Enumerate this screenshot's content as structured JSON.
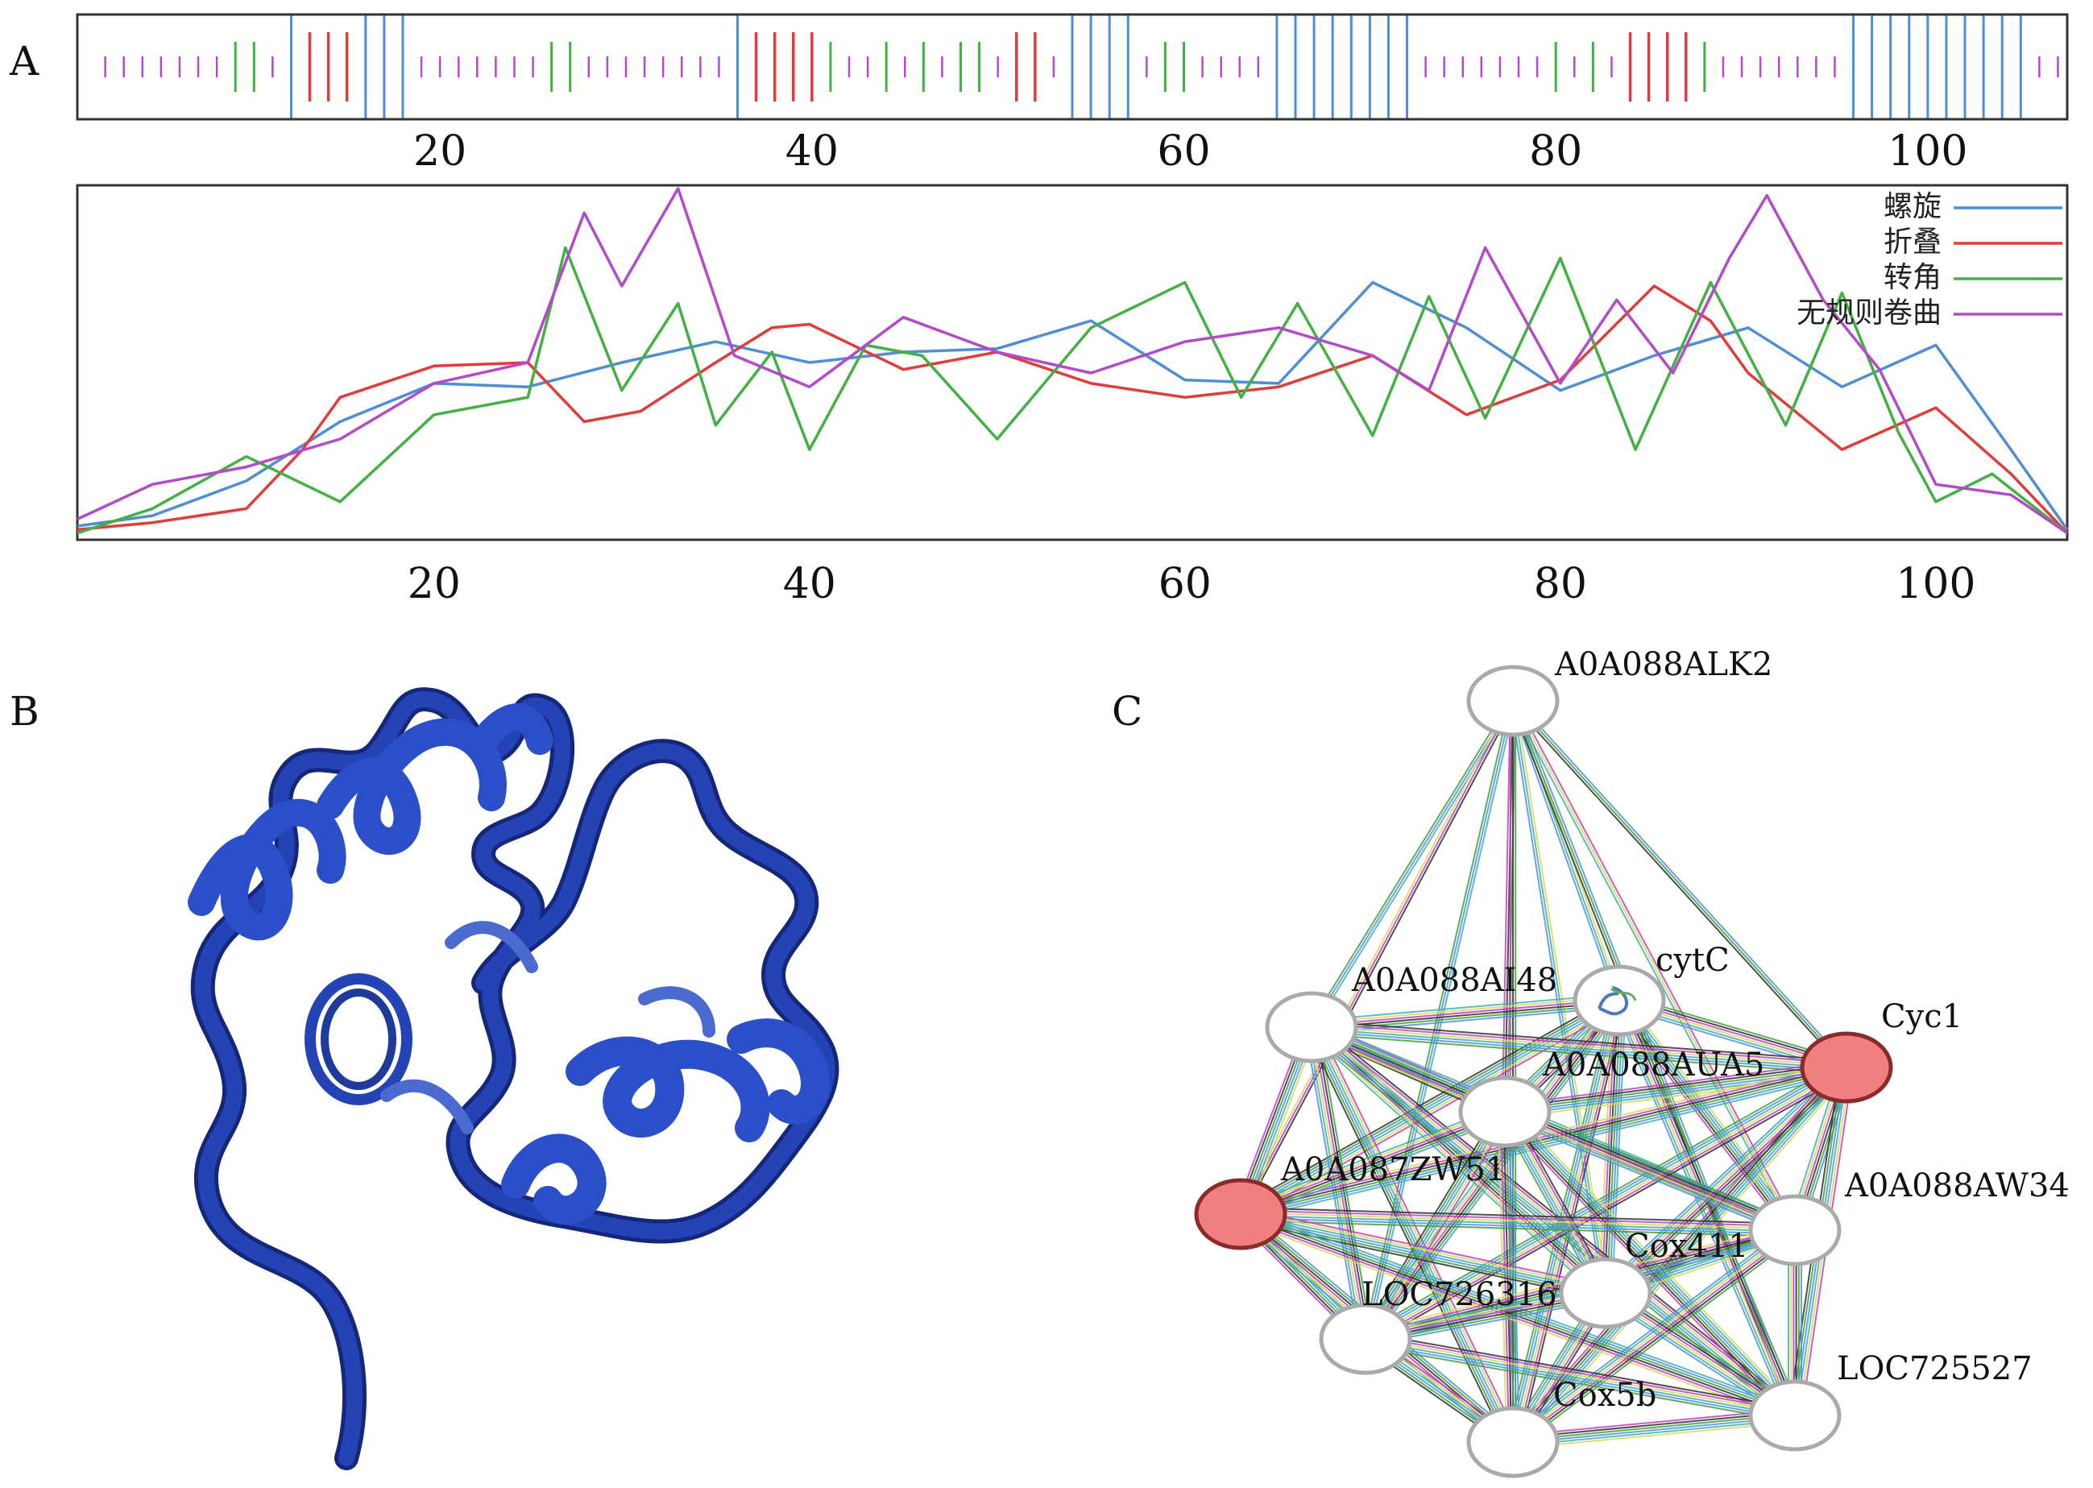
{
  "panels": {
    "a": "A",
    "b": "B",
    "c": "C"
  },
  "colors": {
    "helix": "#4f8ed2",
    "strand": "#e03c3c",
    "turn": "#43b043",
    "coil": "#b24ac9",
    "ribbon": "#2444b5",
    "highlight": "#f08080"
  },
  "track": {
    "range": [
      1,
      107
    ],
    "ticks": [
      "20",
      "40",
      "60",
      "80",
      "100"
    ],
    "tick_values": [
      20,
      40,
      60,
      80,
      100
    ],
    "segments": [
      {
        "type": "coil",
        "start": 2,
        "end": 8
      },
      {
        "type": "turn",
        "start": 9,
        "end": 10
      },
      {
        "type": "coil",
        "start": 11,
        "end": 11
      },
      {
        "type": "helix",
        "start": 12,
        "end": 12
      },
      {
        "type": "strand",
        "start": 13,
        "end": 15
      },
      {
        "type": "helix",
        "start": 16,
        "end": 18
      },
      {
        "type": "coil",
        "start": 19,
        "end": 25
      },
      {
        "type": "turn",
        "start": 26,
        "end": 27
      },
      {
        "type": "coil",
        "start": 28,
        "end": 35
      },
      {
        "type": "helix",
        "start": 36,
        "end": 36
      },
      {
        "type": "strand",
        "start": 37,
        "end": 40
      },
      {
        "type": "turn",
        "start": 41,
        "end": 41
      },
      {
        "type": "coil",
        "start": 42,
        "end": 43
      },
      {
        "type": "turn",
        "start": 44,
        "end": 44
      },
      {
        "type": "coil",
        "start": 45,
        "end": 45
      },
      {
        "type": "turn",
        "start": 46,
        "end": 46
      },
      {
        "type": "coil",
        "start": 47,
        "end": 47
      },
      {
        "type": "turn",
        "start": 48,
        "end": 49
      },
      {
        "type": "coil",
        "start": 50,
        "end": 50
      },
      {
        "type": "strand",
        "start": 51,
        "end": 52
      },
      {
        "type": "coil",
        "start": 53,
        "end": 53
      },
      {
        "type": "helix",
        "start": 54,
        "end": 57
      },
      {
        "type": "coil",
        "start": 58,
        "end": 58
      },
      {
        "type": "turn",
        "start": 59,
        "end": 60
      },
      {
        "type": "coil",
        "start": 61,
        "end": 64
      },
      {
        "type": "helix",
        "start": 65,
        "end": 72
      },
      {
        "type": "coil",
        "start": 73,
        "end": 79
      },
      {
        "type": "turn",
        "start": 80,
        "end": 80
      },
      {
        "type": "coil",
        "start": 81,
        "end": 81
      },
      {
        "type": "turn",
        "start": 82,
        "end": 82
      },
      {
        "type": "coil",
        "start": 83,
        "end": 83
      },
      {
        "type": "strand",
        "start": 84,
        "end": 87
      },
      {
        "type": "turn",
        "start": 88,
        "end": 88
      },
      {
        "type": "coil",
        "start": 89,
        "end": 95
      },
      {
        "type": "helix",
        "start": 96,
        "end": 105
      },
      {
        "type": "coil",
        "start": 106,
        "end": 107
      }
    ]
  },
  "chart_data": {
    "type": "line",
    "xlim": [
      1,
      107
    ],
    "ylim": [
      0,
      1
    ],
    "ticks": [
      "20",
      "40",
      "60",
      "80",
      "100"
    ],
    "tick_values": [
      20,
      40,
      60,
      80,
      100
    ],
    "legend_position": "top-right",
    "series": [
      {
        "name": "螺旋",
        "key": "helix",
        "x": [
          1,
          5,
          10,
          15,
          20,
          25,
          30,
          35,
          40,
          45,
          50,
          55,
          60,
          65,
          70,
          75,
          80,
          85,
          90,
          95,
          100,
          104,
          107
        ],
        "y": [
          0.03,
          0.06,
          0.16,
          0.33,
          0.44,
          0.43,
          0.5,
          0.56,
          0.5,
          0.53,
          0.54,
          0.62,
          0.45,
          0.44,
          0.73,
          0.6,
          0.42,
          0.52,
          0.6,
          0.43,
          0.55,
          0.25,
          0.02
        ]
      },
      {
        "name": "折叠",
        "key": "strand",
        "x": [
          1,
          5,
          10,
          13,
          15,
          20,
          25,
          28,
          31,
          35,
          38,
          40,
          45,
          50,
          55,
          60,
          65,
          70,
          75,
          80,
          85,
          88,
          90,
          95,
          100,
          104,
          107
        ],
        "y": [
          0.02,
          0.04,
          0.08,
          0.25,
          0.4,
          0.49,
          0.5,
          0.33,
          0.36,
          0.5,
          0.6,
          0.61,
          0.48,
          0.53,
          0.44,
          0.4,
          0.43,
          0.52,
          0.35,
          0.45,
          0.72,
          0.62,
          0.47,
          0.25,
          0.37,
          0.18,
          0.01
        ]
      },
      {
        "name": "转角",
        "key": "turn",
        "x": [
          1,
          5,
          10,
          15,
          20,
          25,
          27,
          30,
          33,
          35,
          38,
          40,
          43,
          46,
          50,
          55,
          60,
          63,
          66,
          70,
          73,
          76,
          80,
          84,
          88,
          92,
          95,
          98,
          100,
          103,
          107
        ],
        "y": [
          0.01,
          0.08,
          0.23,
          0.1,
          0.35,
          0.4,
          0.83,
          0.42,
          0.67,
          0.32,
          0.53,
          0.25,
          0.55,
          0.52,
          0.28,
          0.6,
          0.73,
          0.4,
          0.67,
          0.29,
          0.69,
          0.34,
          0.8,
          0.25,
          0.73,
          0.32,
          0.7,
          0.3,
          0.1,
          0.18,
          0.01
        ]
      },
      {
        "name": "无规则卷曲",
        "key": "coil",
        "x": [
          1,
          5,
          10,
          15,
          20,
          25,
          28,
          30,
          33,
          36,
          40,
          45,
          50,
          55,
          60,
          65,
          70,
          73,
          76,
          80,
          83,
          86,
          89,
          91,
          94,
          97,
          100,
          104,
          107
        ],
        "y": [
          0.05,
          0.15,
          0.2,
          0.28,
          0.44,
          0.5,
          0.93,
          0.72,
          1.0,
          0.52,
          0.43,
          0.63,
          0.53,
          0.47,
          0.56,
          0.6,
          0.52,
          0.42,
          0.83,
          0.44,
          0.68,
          0.47,
          0.8,
          0.98,
          0.68,
          0.48,
          0.15,
          0.12,
          0.01
        ]
      }
    ]
  },
  "network": {
    "nodes": [
      {
        "id": "A0A088ALK2",
        "label": "A0A088ALK2",
        "style": "plain"
      },
      {
        "id": "cytC",
        "label": "cytC",
        "style": "structure"
      },
      {
        "id": "A0A088AI48",
        "label": "A0A088AI48",
        "style": "plain"
      },
      {
        "id": "Cyc1",
        "label": "Cyc1",
        "style": "highlight"
      },
      {
        "id": "A0A088AUA5",
        "label": "A0A088AUA5",
        "style": "plain"
      },
      {
        "id": "A0A087ZW51",
        "label": "A0A087ZW51",
        "style": "highlight"
      },
      {
        "id": "A0A088AW34",
        "label": "A0A088AW34",
        "style": "plain"
      },
      {
        "id": "Cox411",
        "label": "Cox411",
        "style": "plain"
      },
      {
        "id": "LOC726316",
        "label": "LOC726316",
        "style": "plain"
      },
      {
        "id": "LOC725527",
        "label": "LOC725527",
        "style": "plain"
      },
      {
        "id": "Cox5b",
        "label": "Cox5b",
        "style": "plain"
      }
    ],
    "edge_colors": [
      "#c040c0",
      "#d8d860",
      "#40b0b0",
      "#5090e0",
      "#40a040",
      "#303030"
    ]
  }
}
